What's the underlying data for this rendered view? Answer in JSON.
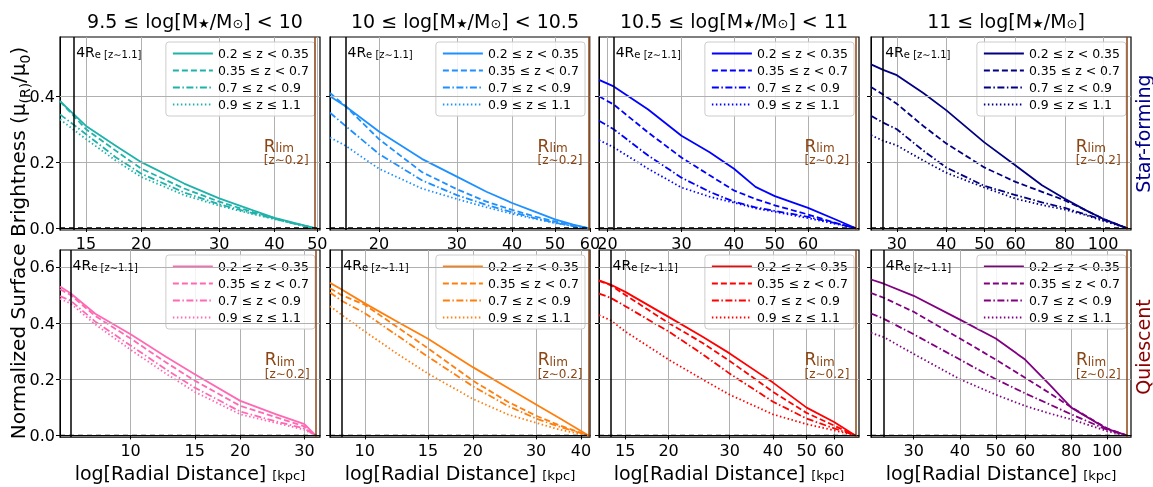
{
  "chart_data": [
    {
      "type": "line",
      "title": "9.5 ≤ log[M$_{★}$/M$_{⊙}$] < 10",
      "ylabel": "Normalized Surface Brightness (μ$_{(R)}$/μ$_{0}$)",
      "log": "x",
      "grid": true,
      "legend": "top right",
      "marker": "none",
      "xlim": [
        13.1,
        50.7
      ],
      "xticks": [
        15,
        20,
        30,
        40,
        50
      ],
      "ylim": [
        -0.006,
        0.58
      ],
      "yticks": [
        {
          "value": 0,
          "label": "0.0"
        },
        0.2,
        0.4
      ],
      "x": [
        13.1,
        15,
        17.5,
        20,
        25,
        30,
        35,
        40,
        45,
        49.3
      ],
      "series": [
        {
          "name": "0.2 ≤ z < 0.35",
          "color": "#20b2aa",
          "line_style": "solid",
          "values": [
            0.385,
            0.31,
            0.25,
            0.2,
            0.135,
            0.09,
            0.058,
            0.031,
            0.013,
            0
          ]
        },
        {
          "name": "0.35 ≤ z < 0.7",
          "color": "#20b2aa",
          "line_style": "dashed",
          "values": [
            0.385,
            0.3,
            0.235,
            0.18,
            0.12,
            0.08,
            0.052,
            0.03,
            0.012,
            0
          ]
        },
        {
          "name": "0.7 ≤ z < 0.9",
          "color": "#20b2aa",
          "line_style": "dashdot",
          "values": [
            0.345,
            0.285,
            0.215,
            0.165,
            0.108,
            0.072,
            0.048,
            0.028,
            0.011,
            0
          ]
        },
        {
          "name": "0.9 ≤ z ≤ 1.1",
          "color": "#20b2aa",
          "line_style": "dotted",
          "values": [
            0.33,
            0.27,
            0.205,
            0.155,
            0.1,
            0.068,
            0.045,
            0.027,
            0.011,
            0
          ]
        }
      ],
      "ref_lines": [
        {
          "axis": "x",
          "value": 14.1,
          "label": "4R$_{e [z∼1.1]}$",
          "color": "#000000"
        },
        {
          "axis": "x",
          "value": 49.3,
          "label": "R$_{lim}$\n$_{[z∼0.2]}$",
          "color": "#8b4513"
        },
        {
          "axis": "y",
          "value": 0,
          "color": "#000000",
          "line_style": "dashed"
        }
      ]
    },
    {
      "type": "line",
      "title": "10 ≤ log[M$_{★}$/M$_{⊙}$] < 10.5",
      "log": "x",
      "grid": true,
      "legend": "top right",
      "marker": "none",
      "tick_labels": "x",
      "xlim": [
        15.5,
        60
      ],
      "xticks": [
        20,
        30,
        40,
        50,
        60
      ],
      "ylim": [
        -0.006,
        0.58
      ],
      "yticks": [
        0,
        0.2,
        0.4
      ],
      "x": [
        15.5,
        16.8,
        20,
        25,
        30,
        35,
        40,
        45,
        50,
        55,
        59.5
      ],
      "series": [
        {
          "name": "0.2 ≤ z < 0.35",
          "color": "#1e90ff",
          "line_style": "solid",
          "values": [
            0.4,
            0.37,
            0.293,
            0.21,
            0.156,
            0.11,
            0.076,
            0.05,
            0.026,
            0.01,
            0
          ]
        },
        {
          "name": "0.35 ≤ z < 0.7",
          "color": "#1e90ff",
          "line_style": "dashed",
          "values": [
            0.41,
            0.37,
            0.27,
            0.17,
            0.118,
            0.08,
            0.055,
            0.035,
            0.02,
            0.008,
            0
          ]
        },
        {
          "name": "0.7 ≤ z < 0.9",
          "color": "#1e90ff",
          "line_style": "dashdot",
          "values": [
            0.35,
            0.31,
            0.225,
            0.145,
            0.1,
            0.07,
            0.048,
            0.03,
            0.016,
            0.006,
            0
          ]
        },
        {
          "name": "0.9 ≤ z ≤ 1.1",
          "color": "#1e90ff",
          "line_style": "dotted",
          "values": [
            0.275,
            0.25,
            0.18,
            0.12,
            0.088,
            0.063,
            0.043,
            0.028,
            0.015,
            0.006,
            0
          ]
        }
      ],
      "ref_lines": [
        {
          "axis": "x",
          "value": 16.8,
          "label": "4R$_{e [z∼1.1]}$",
          "color": "#000000"
        },
        {
          "axis": "x",
          "value": 59.5,
          "label": "R$_{lim}$\n$_{[z∼0.2]}$",
          "color": "#8b4513"
        },
        {
          "axis": "y",
          "value": 0,
          "color": "#000000",
          "line_style": "dashed"
        }
      ]
    },
    {
      "type": "line",
      "title": "10.5 ≤ log[M$_{★}$/M$_{⊙}$] < 11",
      "log": "x",
      "grid": true,
      "legend": "top right",
      "marker": "none",
      "tick_labels": "x",
      "xlim": [
        19.1,
        79.3
      ],
      "xticks": [
        20,
        30,
        40,
        50,
        60
      ],
      "ylim": [
        -0.006,
        0.58
      ],
      "yticks": [
        0,
        0.2,
        0.4
      ],
      "x": [
        19.1,
        20.7,
        25,
        30,
        35,
        40,
        45,
        50,
        60,
        70,
        77.7
      ],
      "series": [
        {
          "name": "0.2 ≤ z < 0.35",
          "color": "#0000ff",
          "line_style": "solid",
          "values": [
            0.45,
            0.43,
            0.36,
            0.28,
            0.23,
            0.18,
            0.125,
            0.097,
            0.061,
            0.025,
            0
          ]
        },
        {
          "name": "0.35 ≤ z < 0.7",
          "color": "#0000ff",
          "line_style": "dashed",
          "values": [
            0.4,
            0.375,
            0.29,
            0.214,
            0.16,
            0.114,
            0.088,
            0.069,
            0.041,
            0.015,
            0
          ]
        },
        {
          "name": "0.7 ≤ z < 0.9",
          "color": "#0000ff",
          "line_style": "dashdot",
          "values": [
            0.326,
            0.3,
            0.22,
            0.153,
            0.11,
            0.08,
            0.063,
            0.052,
            0.034,
            0.014,
            0
          ]
        },
        {
          "name": "0.9 ≤ z ≤ 1.1",
          "color": "#0000ff",
          "line_style": "dotted",
          "values": [
            0.267,
            0.245,
            0.18,
            0.123,
            0.095,
            0.077,
            0.06,
            0.049,
            0.03,
            0.012,
            0
          ]
        }
      ],
      "ref_lines": [
        {
          "axis": "x",
          "value": 20.7,
          "label": "4R$_{e [z∼1.1]}$",
          "color": "#000000"
        },
        {
          "axis": "x",
          "value": 77.7,
          "label": "R$_{lim}$\n$_{[z∼0.2]}$",
          "color": "#8b4513"
        },
        {
          "axis": "y",
          "value": 0,
          "color": "#000000",
          "line_style": "dashed"
        }
      ]
    },
    {
      "type": "line",
      "title": "11 ≤ log[M$_{★}$/M$_{⊙}$]",
      "y2label": "Star-forming",
      "log": "x",
      "grid": true,
      "legend": "top right",
      "marker": "none",
      "tick_labels": "x",
      "xlim": [
        25.8,
        117.7
      ],
      "xticks": [
        30,
        40,
        50,
        60,
        80,
        100
      ],
      "ylim": [
        -0.006,
        0.58
      ],
      "yticks": [
        0,
        0.2,
        0.4
      ],
      "x": [
        25.8,
        27.7,
        30,
        35,
        40,
        50,
        60,
        70,
        80,
        90,
        100,
        114.7
      ],
      "series": [
        {
          "name": "0.2 ≤ z < 0.35",
          "color": "#000080",
          "line_style": "solid",
          "values": [
            0.497,
            0.48,
            0.464,
            0.41,
            0.358,
            0.26,
            0.19,
            0.13,
            0.089,
            0.055,
            0.028,
            0
          ]
        },
        {
          "name": "0.35 ≤ z < 0.7",
          "color": "#000080",
          "line_style": "dashed",
          "values": [
            0.428,
            0.405,
            0.377,
            0.31,
            0.257,
            0.184,
            0.14,
            0.11,
            0.084,
            0.055,
            0.028,
            0
          ]
        },
        {
          "name": "0.7 ≤ z < 0.9",
          "color": "#000080",
          "line_style": "dashdot",
          "values": [
            0.341,
            0.32,
            0.3,
            0.235,
            0.184,
            0.128,
            0.1,
            0.078,
            0.061,
            0.042,
            0.025,
            0
          ]
        },
        {
          "name": "0.9 ≤ z ≤ 1.1",
          "color": "#000080",
          "line_style": "dotted",
          "values": [
            0.282,
            0.265,
            0.251,
            0.205,
            0.168,
            0.123,
            0.089,
            0.07,
            0.056,
            0.04,
            0.022,
            0
          ]
        }
      ],
      "ref_lines": [
        {
          "axis": "x",
          "value": 27.7,
          "label": "4R$_{e [z∼1.1]}$",
          "color": "#000000"
        },
        {
          "axis": "x",
          "value": 114.7,
          "label": "R$_{lim}$\n$_{[z∼0.2]}$",
          "color": "#8b4513"
        },
        {
          "axis": "y",
          "value": 0,
          "color": "#000000",
          "line_style": "dashed"
        }
      ]
    },
    {
      "type": "line",
      "xlabel": "log[Radial Distance] $_{[kpc]}$",
      "log": "x",
      "grid": true,
      "legend": "top right",
      "marker": "none",
      "xlim": [
        6.4,
        33.1
      ],
      "xticks": [
        10,
        15,
        20,
        30
      ],
      "ylim": [
        -0.006,
        0.66
      ],
      "yticks": [
        {
          "value": 0,
          "label": "0.0"
        },
        0.2,
        0.4,
        0.6
      ],
      "x": [
        6.4,
        6.84,
        8,
        10,
        12.5,
        15,
        20,
        25,
        30,
        32.2
      ],
      "series": [
        {
          "name": "0.2 ≤ z < 0.35",
          "color": "#ff69b4",
          "line_style": "solid",
          "values": [
            0.53,
            0.506,
            0.433,
            0.36,
            0.28,
            0.218,
            0.123,
            0.076,
            0.04,
            0
          ]
        },
        {
          "name": "0.35 ≤ z < 0.7",
          "color": "#ff69b4",
          "line_style": "dashed",
          "values": [
            0.52,
            0.5,
            0.425,
            0.345,
            0.26,
            0.195,
            0.105,
            0.065,
            0.032,
            0
          ]
        },
        {
          "name": "0.7 ≤ z < 0.9",
          "color": "#ff69b4",
          "line_style": "dashdot",
          "values": [
            0.496,
            0.48,
            0.405,
            0.32,
            0.235,
            0.17,
            0.085,
            0.05,
            0.025,
            0
          ]
        },
        {
          "name": "0.9 ≤ z ≤ 1.1",
          "color": "#ff69b4",
          "line_style": "dotted",
          "values": [
            0.486,
            0.47,
            0.395,
            0.305,
            0.22,
            0.155,
            0.075,
            0.045,
            0.02,
            0
          ]
        }
      ],
      "ref_lines": [
        {
          "axis": "x",
          "value": 6.84,
          "label": "4R$_{e [z∼1.1]}$",
          "color": "#000000"
        },
        {
          "axis": "x",
          "value": 32.2,
          "label": "R$_{lim}$\n$_{[z∼0.2]}$",
          "color": "#8b4513"
        },
        {
          "axis": "y",
          "value": 0,
          "color": "#000000",
          "line_style": "dashed"
        }
      ]
    },
    {
      "type": "line",
      "xlabel": "log[Radial Distance] $_{[kpc]}$",
      "log": "x",
      "grid": true,
      "legend": "top right",
      "marker": "none",
      "tick_labels": "x",
      "xlim": [
        8,
        42.4
      ],
      "xticks": [
        10,
        15,
        20,
        30,
        40
      ],
      "ylim": [
        -0.006,
        0.66
      ],
      "yticks": [
        0,
        0.2,
        0.4,
        0.6
      ],
      "x": [
        8,
        8.6,
        10,
        12.5,
        15,
        20,
        25,
        30,
        35,
        42
      ],
      "series": [
        {
          "name": "0.2 ≤ z < 0.35",
          "color": "#ff7f0e",
          "line_style": "solid",
          "values": [
            0.543,
            0.52,
            0.47,
            0.4,
            0.344,
            0.243,
            0.17,
            0.11,
            0.06,
            0
          ]
        },
        {
          "name": "0.35 ≤ z < 0.7",
          "color": "#ff7f0e",
          "line_style": "dashed",
          "values": [
            0.524,
            0.5,
            0.465,
            0.38,
            0.31,
            0.195,
            0.12,
            0.07,
            0.035,
            0
          ]
        },
        {
          "name": "0.7 ≤ z < 0.9",
          "color": "#ff7f0e",
          "line_style": "dashdot",
          "values": [
            0.509,
            0.48,
            0.435,
            0.35,
            0.28,
            0.175,
            0.105,
            0.06,
            0.03,
            0
          ]
        },
        {
          "name": "0.9 ≤ z ≤ 1.1",
          "color": "#ff7f0e",
          "line_style": "dotted",
          "values": [
            0.46,
            0.43,
            0.37,
            0.285,
            0.22,
            0.13,
            0.075,
            0.045,
            0.02,
            0
          ]
        }
      ],
      "ref_lines": [
        {
          "axis": "x",
          "value": 8.6,
          "label": "4R$_{e [z∼1.1]}$",
          "color": "#000000"
        },
        {
          "axis": "x",
          "value": 42,
          "label": "R$_{lim}$\n$_{[z∼0.2]}$",
          "color": "#8b4513"
        },
        {
          "axis": "y",
          "value": 0,
          "color": "#000000",
          "line_style": "dashed"
        }
      ]
    },
    {
      "type": "line",
      "xlabel": "log[Radial Distance] $_{[kpc]}$",
      "log": "x",
      "grid": true,
      "legend": "top right",
      "marker": "none",
      "tick_labels": "x",
      "xlim": [
        12.6,
        70.8
      ],
      "xticks": [
        15,
        20,
        30,
        40,
        50,
        60
      ],
      "ylim": [
        -0.006,
        0.66
      ],
      "yticks": [
        0,
        0.2,
        0.4,
        0.6
      ],
      "x": [
        12.6,
        13.6,
        15,
        20,
        25,
        30,
        40,
        50,
        60,
        69.1
      ],
      "series": [
        {
          "name": "0.2 ≤ z < 0.35",
          "color": "#ff0000",
          "line_style": "solid",
          "values": [
            0.552,
            0.537,
            0.511,
            0.422,
            0.352,
            0.292,
            0.188,
            0.099,
            0.048,
            0
          ]
        },
        {
          "name": "0.35 ≤ z < 0.7",
          "color": "#ff0000",
          "line_style": "dashed",
          "values": [
            0.55,
            0.535,
            0.5,
            0.4,
            0.33,
            0.265,
            0.155,
            0.08,
            0.035,
            0
          ]
        },
        {
          "name": "0.7 ≤ z < 0.9",
          "color": "#ff0000",
          "line_style": "dashdot",
          "values": [
            0.505,
            0.49,
            0.46,
            0.37,
            0.29,
            0.22,
            0.12,
            0.06,
            0.025,
            0
          ]
        },
        {
          "name": "0.9 ≤ z ≤ 1.1",
          "color": "#ff0000",
          "line_style": "dotted",
          "values": [
            0.428,
            0.41,
            0.37,
            0.27,
            0.2,
            0.145,
            0.075,
            0.04,
            0.018,
            0
          ]
        }
      ],
      "ref_lines": [
        {
          "axis": "x",
          "value": 13.6,
          "label": "4R$_{e [z∼1.1]}$",
          "color": "#000000"
        },
        {
          "axis": "x",
          "value": 69.1,
          "label": "R$_{lim}$\n$_{[z∼0.2]}$",
          "color": "#8b4513"
        },
        {
          "axis": "y",
          "value": 0,
          "color": "#000000",
          "line_style": "dashed"
        }
      ]
    },
    {
      "type": "line",
      "xlabel": "log[Radial Distance] $_{[kpc]}$",
      "y2label": "Quiescent",
      "log": "x",
      "grid": true,
      "legend": "top right",
      "marker": "none",
      "tick_labels": "x",
      "xlim": [
        23,
        116
      ],
      "xticks": [
        30,
        40,
        50,
        60,
        80,
        100
      ],
      "ylim": [
        -0.006,
        0.66
      ],
      "yticks": [
        0,
        0.2,
        0.4,
        0.6
      ],
      "x": [
        23,
        24.9,
        30,
        40,
        50,
        60,
        70,
        80,
        100,
        113
      ],
      "series": [
        {
          "name": "0.2 ≤ z < 0.35",
          "color": "#800080",
          "line_style": "solid",
          "values": [
            0.555,
            0.54,
            0.497,
            0.412,
            0.345,
            0.27,
            0.18,
            0.099,
            0.023,
            0
          ]
        },
        {
          "name": "0.35 ≤ z < 0.7",
          "color": "#800080",
          "line_style": "dashed",
          "values": [
            0.507,
            0.49,
            0.44,
            0.345,
            0.27,
            0.205,
            0.15,
            0.1,
            0.025,
            0
          ]
        },
        {
          "name": "0.7 ≤ z < 0.9",
          "color": "#800080",
          "line_style": "dashdot",
          "values": [
            0.434,
            0.415,
            0.36,
            0.27,
            0.2,
            0.15,
            0.11,
            0.075,
            0.02,
            0
          ]
        },
        {
          "name": "0.9 ≤ z ≤ 1.1",
          "color": "#800080",
          "line_style": "dotted",
          "values": [
            0.365,
            0.35,
            0.29,
            0.2,
            0.145,
            0.105,
            0.078,
            0.057,
            0.015,
            0
          ]
        }
      ],
      "ref_lines": [
        {
          "axis": "x",
          "value": 24.9,
          "label": "4R$_{e [z∼1.1]}$",
          "color": "#000000"
        },
        {
          "axis": "x",
          "value": 113,
          "label": "R$_{lim}$\n$_{[z∼0.2]}$",
          "color": "#8b4513"
        },
        {
          "axis": "y",
          "value": 0,
          "color": "#000000",
          "line_style": "dashed"
        }
      ]
    }
  ]
}
